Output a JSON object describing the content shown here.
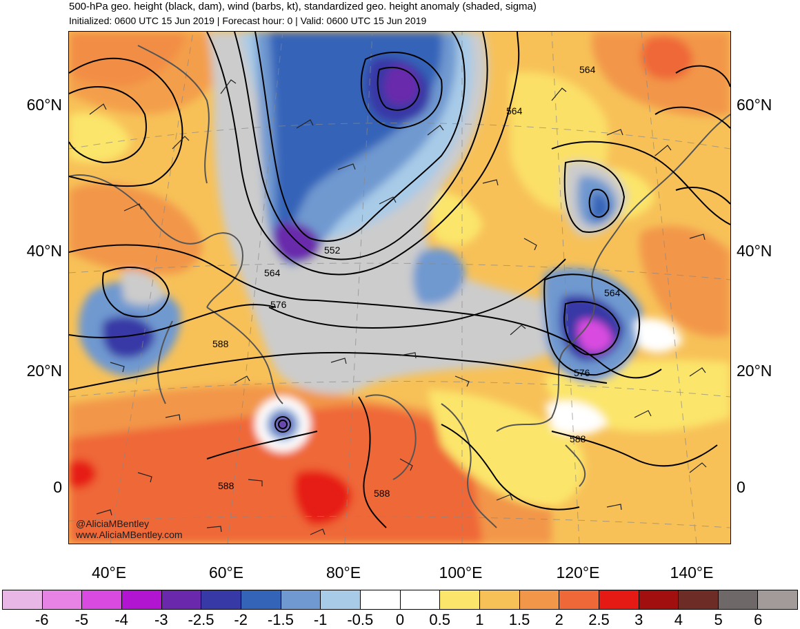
{
  "header": {
    "title": "500-hPa geo. height (black, dam), wind (barbs, kt), standardized geo. height anomaly (shaded, sigma)",
    "subtitle": "Initialized: 0600 UTC 15 Jun 2019 | Forecast hour: 0 | Valid: 0600 UTC 15 Jun 2019"
  },
  "map": {
    "lat_labels": [
      "60°N",
      "40°N",
      "20°N",
      "0"
    ],
    "lon_labels": [
      "40°E",
      "60°E",
      "80°E",
      "100°E",
      "120°E",
      "140°E"
    ],
    "contour_labels": [
      "564",
      "564",
      "564",
      "552",
      "564",
      "576",
      "588",
      "576",
      "588",
      "588",
      "588"
    ],
    "credits": [
      "@AliciaMBentley",
      "www.AliciaMBentley.com"
    ]
  },
  "colorbar": {
    "labels": [
      "-6",
      "-5",
      "-4",
      "-3",
      "-2.5",
      "-2",
      "-1.5",
      "-1",
      "-0.5",
      "0",
      "0.5",
      "1",
      "1.5",
      "2",
      "2.5",
      "3",
      "4",
      "5",
      "6"
    ],
    "colors": [
      "#e9b7e6",
      "#e783e5",
      "#d94be0",
      "#b215d1",
      "#6a29ac",
      "#3739a6",
      "#3464b8",
      "#6f99d0",
      "#a8cbe8",
      "#ffffff",
      "#ffffff",
      "#fbe56a",
      "#f7c158",
      "#f29649",
      "#ef6838",
      "#e61a14",
      "#a10f0f",
      "#6d2c26",
      "#6f6868",
      "#a39a9a"
    ]
  }
}
